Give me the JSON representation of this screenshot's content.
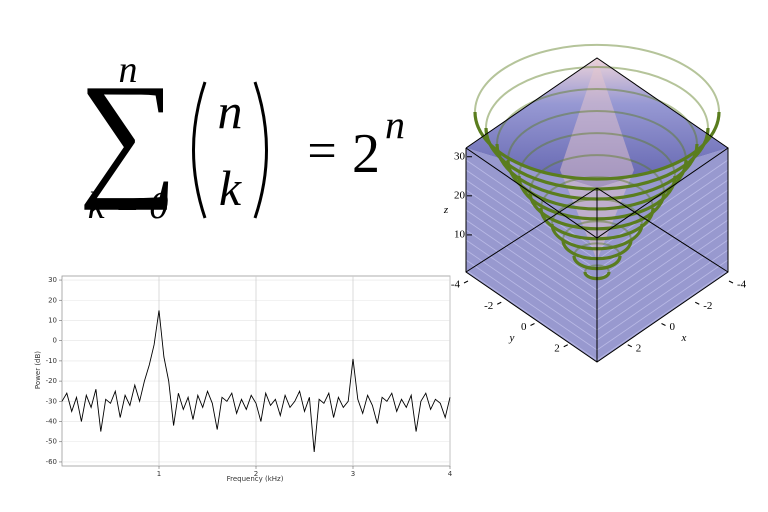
{
  "formula": {
    "sum_upper": "n",
    "sum_lower": "k = 0",
    "binom_top": "n",
    "binom_bottom": "k",
    "equals": "=",
    "base": "2",
    "exponent": "n"
  },
  "chart_data": [
    {
      "type": "line",
      "x_label": "Frequency (kHz)",
      "y_label": "Power (dB)",
      "xlim": [
        0,
        4
      ],
      "ylim": [
        -62,
        32
      ],
      "xticks": [
        1,
        2,
        3,
        4
      ],
      "yticks": [
        -60,
        -50,
        -40,
        -30,
        -20,
        -10,
        0,
        10,
        20,
        30
      ],
      "grid": true,
      "x": [
        0,
        0.05,
        0.1,
        0.15,
        0.2,
        0.25,
        0.3,
        0.35,
        0.4,
        0.45,
        0.5,
        0.55,
        0.6,
        0.65,
        0.7,
        0.75,
        0.8,
        0.85,
        0.9,
        0.95,
        1.0,
        1.05,
        1.1,
        1.15,
        1.2,
        1.25,
        1.3,
        1.35,
        1.4,
        1.45,
        1.5,
        1.55,
        1.6,
        1.65,
        1.7,
        1.75,
        1.8,
        1.85,
        1.9,
        1.95,
        2.0,
        2.05,
        2.1,
        2.15,
        2.2,
        2.25,
        2.3,
        2.35,
        2.4,
        2.45,
        2.5,
        2.55,
        2.6,
        2.65,
        2.7,
        2.75,
        2.8,
        2.85,
        2.9,
        2.95,
        3.0,
        3.05,
        3.1,
        3.15,
        3.2,
        3.25,
        3.3,
        3.35,
        3.4,
        3.45,
        3.5,
        3.55,
        3.6,
        3.65,
        3.7,
        3.75,
        3.8,
        3.85,
        3.9,
        3.95,
        4.0
      ],
      "series": [
        {
          "color": "#000000",
          "values": [
            -30,
            -26,
            -35,
            -28,
            -40,
            -27,
            -33,
            -24,
            -45,
            -29,
            -31,
            -25,
            -38,
            -27,
            -32,
            -22,
            -30,
            -20,
            -12,
            -2,
            15,
            -8,
            -20,
            -42,
            -26,
            -34,
            -28,
            -39,
            -27,
            -33,
            -25,
            -31,
            -44,
            -28,
            -30,
            -26,
            -36,
            -29,
            -34,
            -27,
            -31,
            -40,
            -26,
            -32,
            -29,
            -37,
            -27,
            -33,
            -30,
            -25,
            -35,
            -28,
            -55,
            -29,
            -31,
            -26,
            -38,
            -28,
            -33,
            -30,
            -9,
            -29,
            -36,
            -27,
            -32,
            -41,
            -28,
            -30,
            -26,
            -35,
            -29,
            -33,
            -27,
            -45,
            -30,
            -26,
            -34,
            -29,
            -31,
            -38,
            -28
          ]
        }
      ]
    },
    {
      "type": "surface3d",
      "x_label": "x",
      "y_label": "y",
      "z_label": "z",
      "xlim": [
        -4,
        4
      ],
      "ylim": [
        -4,
        4
      ],
      "zlim": [
        0,
        33
      ],
      "xticks": [
        -4,
        -2,
        0,
        2
      ],
      "yticks": [
        -4,
        -2,
        0,
        2
      ],
      "zticks": [
        10,
        20,
        30
      ]
    }
  ]
}
